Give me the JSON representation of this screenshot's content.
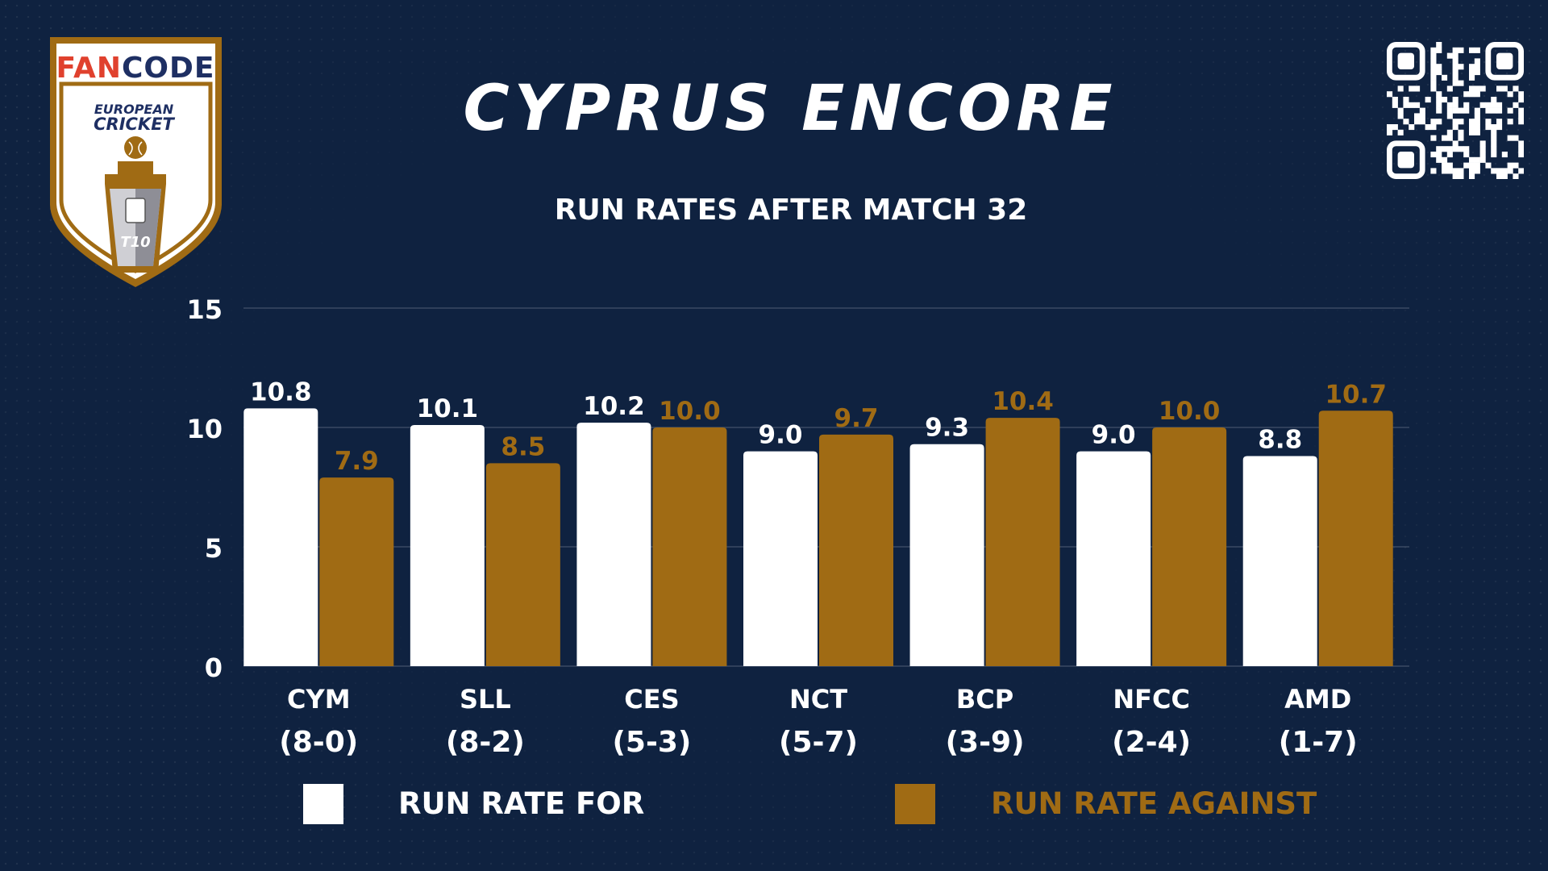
{
  "header": {
    "title": "CYPRUS ENCORE",
    "subtitle": "RUN RATES AFTER MATCH 32"
  },
  "logo": {
    "brand": "FANCODE",
    "line1": "EUROPEAN",
    "line2": "CRICKET",
    "badge": "T10"
  },
  "colors": {
    "background": "#0f2240",
    "for": "#ffffff",
    "against": "#a06b14"
  },
  "chart_data": {
    "type": "bar",
    "title": "RUN RATES AFTER MATCH 32",
    "categories": [
      "CYM",
      "SLL",
      "CES",
      "NCT",
      "BCP",
      "NFCC",
      "AMD"
    ],
    "records": [
      "(8-0)",
      "(8-2)",
      "(5-3)",
      "(5-7)",
      "(3-9)",
      "(2-4)",
      "(1-7)"
    ],
    "series": [
      {
        "name": "RUN RATE FOR",
        "values": [
          10.8,
          10.1,
          10.2,
          9.0,
          9.3,
          9.0,
          8.8
        ]
      },
      {
        "name": "RUN RATE AGAINST",
        "values": [
          7.9,
          8.5,
          10.0,
          9.7,
          10.4,
          10.0,
          10.7
        ]
      }
    ],
    "value_labels": [
      [
        "10.8",
        "10.1",
        "10.2",
        "9.0",
        "9.3",
        "9.0",
        "8.8"
      ],
      [
        "7.9",
        "8.5",
        "10.0",
        "9.7",
        "10.4",
        "10.0",
        "10.7"
      ]
    ],
    "ylim": [
      0,
      15
    ],
    "yticks": [
      "0",
      "5",
      "10",
      "15"
    ],
    "grid": true,
    "legend_position": "bottom"
  }
}
